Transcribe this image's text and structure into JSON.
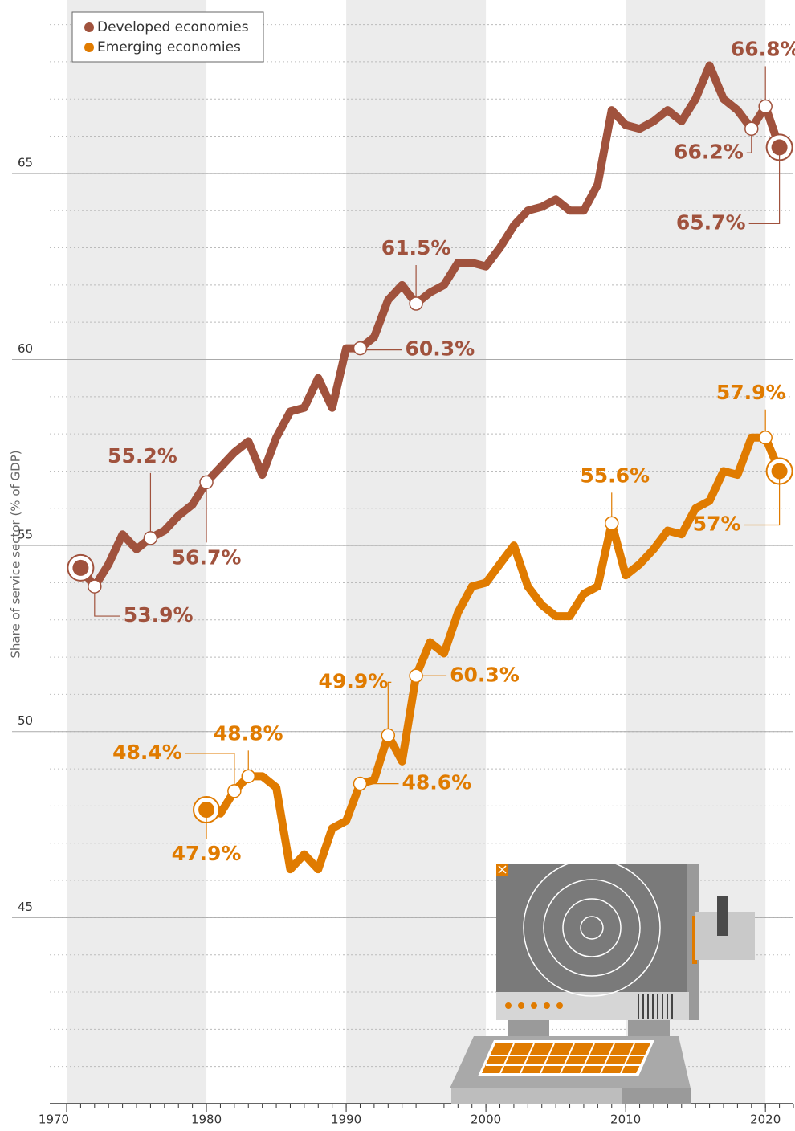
{
  "chart_data": {
    "type": "line",
    "y_label": "Share of service sector (% of GDP)",
    "xlim": [
      1970,
      2022
    ],
    "xticks": [
      1970,
      1980,
      1990,
      2000,
      2010,
      2020
    ],
    "ylim": [
      40,
      69.5
    ],
    "yticks": [
      45,
      50,
      55,
      60,
      65
    ],
    "grid": true,
    "legend": "top-left",
    "series": [
      {
        "name": "Developed economies",
        "color": "#a0523d",
        "x": [
          1971,
          1972,
          1973,
          1974,
          1975,
          1976,
          1977,
          1978,
          1979,
          1980,
          1981,
          1982,
          1983,
          1984,
          1985,
          1986,
          1987,
          1988,
          1989,
          1990,
          1991,
          1992,
          1993,
          1994,
          1995,
          1996,
          1997,
          1998,
          1999,
          2000,
          2001,
          2002,
          2003,
          2004,
          2005,
          2006,
          2007,
          2008,
          2009,
          2010,
          2011,
          2012,
          2013,
          2014,
          2015,
          2016,
          2017,
          2018,
          2019,
          2020,
          2021
        ],
        "values": [
          54.4,
          53.9,
          54.5,
          55.3,
          54.9,
          55.2,
          55.4,
          55.8,
          56.1,
          56.7,
          57.1,
          57.5,
          57.8,
          56.9,
          57.9,
          58.6,
          58.7,
          59.5,
          58.7,
          60.3,
          60.3,
          60.6,
          61.6,
          62.0,
          61.5,
          61.8,
          62.0,
          62.6,
          62.6,
          62.5,
          63.0,
          63.6,
          64.0,
          64.1,
          64.3,
          64.0,
          64.0,
          64.7,
          66.7,
          66.3,
          66.2,
          66.4,
          66.7,
          66.4,
          67.0,
          67.9,
          67.0,
          66.7,
          66.2,
          66.8,
          65.7
        ],
        "value_labels": [
          null,
          "53.9%",
          null,
          null,
          null,
          "55.2%",
          null,
          null,
          null,
          "56.7%",
          null,
          null,
          null,
          null,
          null,
          null,
          null,
          null,
          null,
          null,
          "60.3%",
          null,
          null,
          null,
          "61.5%",
          null,
          null,
          null,
          null,
          null,
          null,
          null,
          null,
          null,
          null,
          null,
          null,
          null,
          null,
          null,
          null,
          null,
          null,
          null,
          null,
          null,
          null,
          null,
          "66.2%",
          "66.8%",
          "65.7%"
        ]
      },
      {
        "name": "Emerging economies",
        "color": "#e07b00",
        "x": [
          1980,
          1981,
          1982,
          1983,
          1984,
          1985,
          1986,
          1987,
          1988,
          1989,
          1990,
          1991,
          1992,
          1993,
          1994,
          1995,
          1996,
          1997,
          1998,
          1999,
          2000,
          2001,
          2002,
          2003,
          2004,
          2005,
          2006,
          2007,
          2008,
          2009,
          2010,
          2011,
          2012,
          2013,
          2014,
          2015,
          2016,
          2017,
          2018,
          2019,
          2020,
          2021
        ],
        "values": [
          47.9,
          47.8,
          48.4,
          48.8,
          48.8,
          48.5,
          46.3,
          46.7,
          46.3,
          47.4,
          47.6,
          48.6,
          48.7,
          49.9,
          49.2,
          51.5,
          52.4,
          52.1,
          53.2,
          53.9,
          54.0,
          54.5,
          55.0,
          53.9,
          53.4,
          53.1,
          53.1,
          53.7,
          53.9,
          55.6,
          54.2,
          54.5,
          54.9,
          55.4,
          55.3,
          56.0,
          56.2,
          57.0,
          56.9,
          57.9,
          57.9,
          57.0
        ],
        "value_labels": [
          "47.9%",
          null,
          "48.4%",
          "48.8%",
          null,
          null,
          null,
          null,
          null,
          null,
          null,
          "48.6%",
          null,
          "49.9%",
          null,
          null,
          null,
          null,
          null,
          null,
          null,
          null,
          null,
          null,
          null,
          null,
          null,
          null,
          null,
          "55.6%",
          null,
          null,
          null,
          null,
          null,
          null,
          null,
          null,
          null,
          null,
          "57.9%",
          "57%"
        ]
      }
    ],
    "annotations": [
      {
        "text": "60.3%",
        "x": 1995
      }
    ]
  }
}
